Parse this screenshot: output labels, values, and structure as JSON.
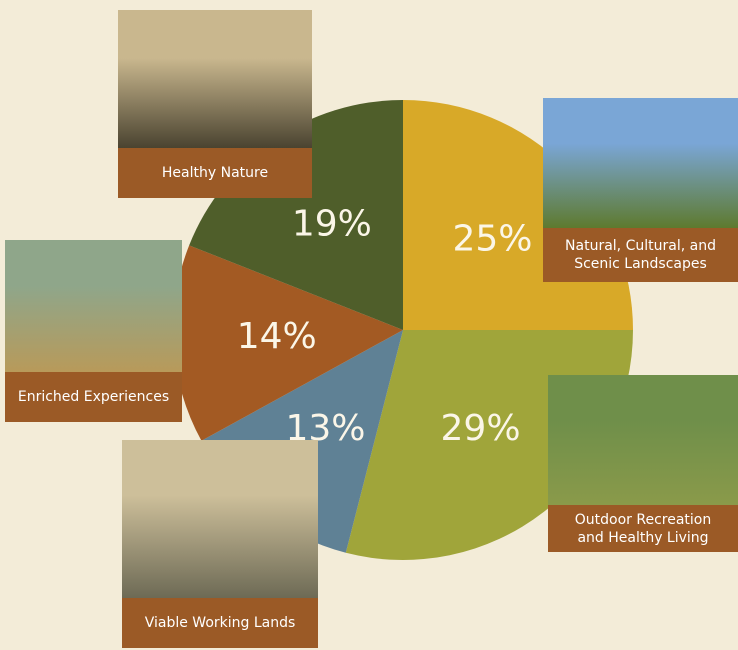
{
  "chart_data": {
    "type": "pie",
    "categories": [
      "Natural, Cultural, and Scenic Landscapes",
      "Outdoor Recreation and Healthy Living",
      "Viable Working Lands",
      "Enriched Experiences",
      "Healthy Nature"
    ],
    "values": [
      25,
      29,
      13,
      14,
      19
    ],
    "value_labels": [
      "25%",
      "29%",
      "13%",
      "14%",
      "19%"
    ],
    "colors": [
      "#d8a928",
      "#a0a53a",
      "#5f8195",
      "#a35a23",
      "#4f5e2a"
    ]
  }
}
